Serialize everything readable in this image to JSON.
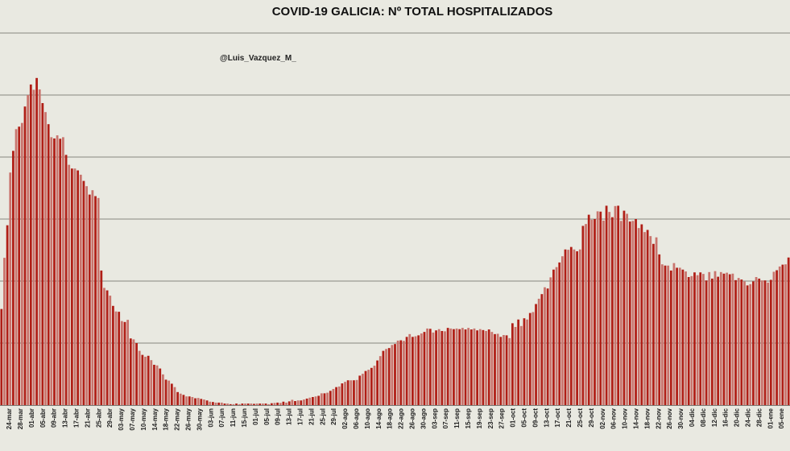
{
  "chart_data": {
    "type": "bar",
    "title": "COVID-19 GALICIA: Nº TOTAL HOSPITALIZADOS",
    "watermark": "@Luis_Vazquez_M_",
    "xlabel": "",
    "ylabel": "",
    "ylim": [
      0,
      1200
    ],
    "y_gridlines": [
      200,
      400,
      600,
      800,
      1000,
      1200
    ],
    "series": [
      {
        "name": "Hospitalizados",
        "start_date": "2020-03-22",
        "values": [
          310,
          475,
          580,
          750,
          820,
          890,
          898,
          910,
          963,
          1000,
          1034,
          1017,
          1055,
          1018,
          974,
          945,
          906,
          864,
          860,
          870,
          859,
          864,
          807,
          775,
          763,
          763,
          757,
          743,
          723,
          706,
          679,
          693,
          674,
          668,
          434,
          378,
          370,
          353,
          320,
          302,
          301,
          271,
          268,
          275,
          215,
          212,
          200,
          175,
          162,
          156,
          159,
          145,
          130,
          128,
          118,
          99,
          82,
          79,
          69,
          58,
          42,
          37,
          33,
          28,
          28,
          26,
          22,
          23,
          20,
          18,
          15,
          11,
          10,
          8,
          8,
          8,
          5,
          5,
          3,
          3,
          5,
          3,
          5,
          5,
          5,
          5,
          4,
          5,
          5,
          5,
          5,
          3,
          6,
          7,
          8,
          7,
          11,
          8,
          12,
          17,
          13,
          15,
          15,
          18,
          21,
          24,
          26,
          28,
          30,
          38,
          38,
          40,
          46,
          52,
          58,
          60,
          70,
          75,
          80,
          80,
          80,
          81,
          95,
          101,
          110,
          114,
          120,
          127,
          144,
          158,
          175,
          181,
          184,
          194,
          197,
          208,
          209,
          207,
          220,
          229,
          220,
          222,
          225,
          231,
          236,
          247,
          246,
          234,
          241,
          245,
          239,
          238,
          249,
          247,
          245,
          247,
          245,
          249,
          244,
          249,
          244,
          247,
          241,
          245,
          242,
          239,
          244,
          236,
          229,
          230,
          220,
          226,
          225,
          216,
          264,
          252,
          276,
          255,
          280,
          276,
          297,
          300,
          326,
          343,
          358,
          380,
          376,
          412,
          437,
          445,
          460,
          480,
          502,
          501,
          510,
          502,
          496,
          502,
          578,
          584,
          614,
          598,
          600,
          625,
          624,
          595,
          643,
          623,
          606,
          642,
          643,
          594,
          627,
          617,
          592,
          594,
          600,
          571,
          583,
          558,
          565,
          545,
          520,
          541,
          486,
          454,
          450,
          450,
          434,
          458,
          443,
          443,
          437,
          431,
          413,
          416,
          428,
          419,
          428,
          423,
          402,
          429,
          408,
          432,
          414,
          429,
          424,
          427,
          422,
          424,
          403,
          410,
          405,
          399,
          386,
          390,
          399,
          413,
          408,
          402,
          402,
          395,
          404,
          430,
          435,
          447,
          453,
          454,
          476
        ]
      }
    ],
    "x_tick_labels": [
      "24-mar",
      "28-mar",
      "01-abr",
      "05-abr",
      "09-abr",
      "13-abr",
      "17-abr",
      "21-abr",
      "25-abr",
      "29-abr",
      "03-may",
      "07-may",
      "10-may",
      "14-may",
      "18-may",
      "22-may",
      "26-may",
      "30-may",
      "03-jun",
      "07-jun",
      "11-jun",
      "15-jun",
      "01-jul",
      "05-jul",
      "09-jul",
      "13-jul",
      "17-jul",
      "21-jul",
      "25-jul",
      "29-jul",
      "02-ago",
      "06-ago",
      "10-ago",
      "14-ago",
      "18-ago",
      "22-ago",
      "26-ago",
      "30-ago",
      "03-sep",
      "07-sep",
      "11-sep",
      "15-sep",
      "19-sep",
      "23-sep",
      "27-sep",
      "01-oct",
      "05-oct",
      "09-oct",
      "13-oct",
      "17-oct",
      "21-oct",
      "25-oct",
      "29-oct",
      "02-nov",
      "06-nov",
      "10-nov",
      "14-nov",
      "18-nov",
      "22-nov",
      "26-nov",
      "30-nov",
      "04-dic",
      "08-dic",
      "12-dic",
      "16-dic",
      "20-dic",
      "24-dic",
      "28-dic",
      "01-ene",
      "05-ene"
    ]
  },
  "colors": {
    "background": "#e9e9e1",
    "bar_dark": "#b01e16",
    "bar_light": "#c9746d",
    "gridline": "#9a9a94"
  }
}
